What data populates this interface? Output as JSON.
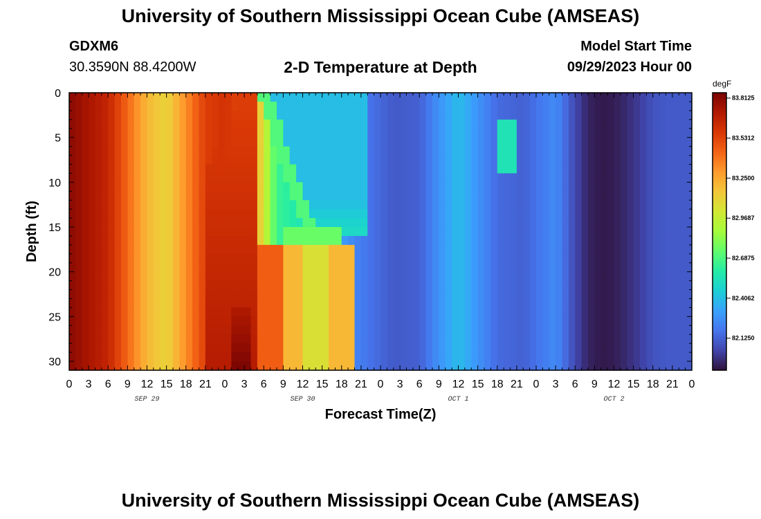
{
  "header": {
    "title": "University of Southern Mississippi Ocean Cube (AMSEAS)",
    "station": "GDXM6",
    "coords": "30.3590N  88.4200W",
    "plot_title": "2-D Temperature at Depth",
    "start_label": "Model Start Time",
    "start_value": "09/29/2023 Hour 00"
  },
  "footer": {
    "title": "University of Southern Mississippi Ocean Cube (AMSEAS)"
  },
  "colors": {
    "palette": [
      "#30123b",
      "#4145ab",
      "#4675ed",
      "#39a2fc",
      "#1bcfd4",
      "#24eca6",
      "#61fc6c",
      "#a4fc3b",
      "#d1e834",
      "#f3c63a",
      "#fe9b2d",
      "#f36315",
      "#d93806",
      "#b11901",
      "#7a0403"
    ]
  },
  "chart_data": {
    "type": "heatmap",
    "xlabel": "Forecast Time(Z)",
    "ylabel": "Depth (ft)",
    "x_range_hours": [
      0,
      96
    ],
    "x_tick_labels": [
      "0",
      "3",
      "6",
      "9",
      "12",
      "15",
      "18",
      "21",
      "0",
      "3",
      "6",
      "9",
      "12",
      "15",
      "18",
      "21",
      "0",
      "3",
      "6",
      "9",
      "12",
      "15",
      "18",
      "21",
      "0",
      "3",
      "6",
      "9",
      "12",
      "15",
      "18",
      "21",
      "0"
    ],
    "date_labels": [
      {
        "label": "SEP 29",
        "hour": 12
      },
      {
        "label": "SEP 30",
        "hour": 36
      },
      {
        "label": "OCT 1",
        "hour": 60
      },
      {
        "label": "OCT 2",
        "hour": 84
      }
    ],
    "y_range": [
      0,
      31
    ],
    "y_ticks": [
      0,
      5,
      10,
      15,
      20,
      25,
      30
    ],
    "y_inverted": true,
    "colorbar": {
      "unit": "degF",
      "min": 81.9,
      "max": 83.85,
      "tick_values": [
        83.8125,
        83.5312,
        83.25,
        82.9687,
        82.6875,
        82.4062,
        82.125
      ],
      "tick_labels": [
        "83.8125",
        "83.5312",
        "83.2500",
        "82.9687",
        "82.6875",
        "82.4062",
        "82.1250"
      ]
    },
    "column_profile_hours": [
      0,
      6,
      12,
      15,
      21,
      24,
      27,
      29,
      32,
      36,
      40,
      42,
      45,
      46,
      50,
      54,
      56,
      60,
      66,
      70,
      75,
      78,
      80,
      82,
      84,
      86,
      88,
      90,
      92,
      96
    ],
    "column_profile_values": [
      83.8125,
      83.65,
      83.2,
      83.1,
      83.55,
      83.6,
      83.5,
      83.2,
      82.65,
      82.55,
      82.45,
      82.3,
      82.2,
      82.18,
      82.1,
      82.12,
      82.22,
      82.4,
      82.15,
      82.12,
      82.25,
      82.05,
      81.95,
      81.92,
      81.93,
      81.97,
      82.02,
      82.08,
      82.1,
      82.1
    ],
    "features": [
      {
        "name": "cool surface tongue (upper layer, 0-16 ft)",
        "x_hours": [
          29,
          46
        ],
        "y_ft": [
          0,
          16
        ],
        "value": 82.4
      },
      {
        "name": "mixed cool band at 16-18 ft",
        "x_hours": [
          33,
          42
        ],
        "y_ft": [
          15,
          18
        ],
        "value": 82.75
      },
      {
        "name": "warm near-bottom core",
        "x_hours": [
          25,
          28
        ],
        "y_ft": [
          24,
          31
        ],
        "value": 83.85
      },
      {
        "name": "warm lower layer (below 18 ft)",
        "x_hours": [
          29,
          42
        ],
        "y_ft": [
          17,
          31
        ],
        "value": 83.25
      },
      {
        "name": "subsurface cool patch",
        "x_hours": [
          67,
          68
        ],
        "y_ft": [
          3,
          9
        ],
        "value": 82.55
      }
    ]
  }
}
